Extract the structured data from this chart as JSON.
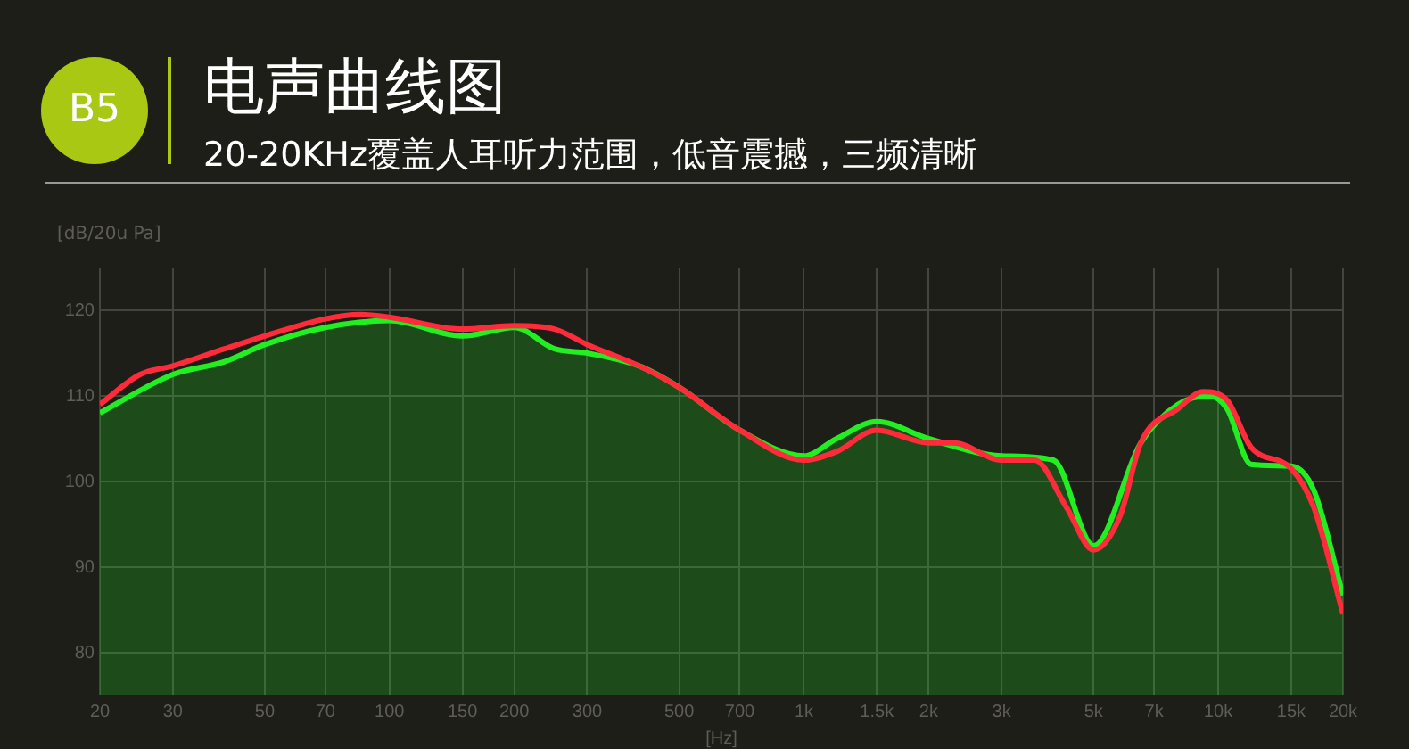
{
  "chart_data": {
    "type": "line",
    "title": "电声曲线图",
    "subtitle": "20-20KHz覆盖人耳听力范围，低音震撼，三频清晰",
    "ylabel": "[dB/20u Pa]",
    "xlabel": "[Hz]",
    "annotations": [
      "B5"
    ],
    "log": "x",
    "grid": true,
    "legend": false,
    "marker": "none",
    "line_style": "solid",
    "xlim": [
      20,
      20000
    ],
    "ylim": [
      75,
      125
    ],
    "xticks": [
      20,
      30,
      50,
      70,
      100,
      150,
      200,
      300,
      500,
      700,
      {
        "value": 1000,
        "label": "1k"
      },
      {
        "value": 1500,
        "label": "1.5k"
      },
      {
        "value": 2000,
        "label": "2k"
      },
      {
        "value": 3000,
        "label": "3k"
      },
      {
        "value": 5000,
        "label": "5k"
      },
      {
        "value": 7000,
        "label": "7k"
      },
      {
        "value": 10000,
        "label": "10k"
      },
      {
        "value": 15000,
        "label": "15k"
      },
      {
        "value": 20000,
        "label": "20k"
      }
    ],
    "yticks": [
      80,
      90,
      100,
      110,
      120
    ],
    "series": [
      {
        "type": "area",
        "color": "#22ee22",
        "x": [
          20,
          30,
          40,
          50,
          70,
          100,
          150,
          200,
          250,
          300,
          400,
          500,
          700,
          1000,
          1200,
          1500,
          2000,
          3000,
          4000,
          5000,
          6500,
          8000,
          9500,
          10500,
          12000,
          15000,
          17000,
          20000
        ],
        "values": [
          108,
          112.5,
          114,
          116,
          118,
          118.8,
          117,
          118,
          115.5,
          115,
          113.5,
          111,
          106,
          103,
          105,
          107,
          105,
          103,
          102.5,
          92.5,
          104.5,
          109,
          110,
          108.5,
          102,
          101.8,
          99,
          86.7
        ]
      },
      {
        "type": "line",
        "color": "#ff2a3a",
        "x": [
          20,
          25,
          30,
          40,
          50,
          70,
          85,
          100,
          150,
          200,
          250,
          300,
          400,
          500,
          700,
          1000,
          1200,
          1500,
          2000,
          2300,
          3000,
          3600,
          4300,
          5000,
          5800,
          6500,
          8000,
          9200,
          10500,
          12000,
          15000,
          17000,
          20000
        ],
        "values": [
          109,
          112.5,
          113.5,
          115.5,
          117,
          119,
          119.5,
          119.2,
          117.8,
          118.2,
          117.8,
          116,
          113.5,
          111,
          106,
          102.5,
          103.5,
          106,
          104.5,
          104.5,
          102.5,
          102.5,
          97,
          92,
          96,
          104.5,
          108.5,
          110.5,
          109.5,
          104,
          101.5,
          97,
          84.5
        ]
      }
    ]
  }
}
